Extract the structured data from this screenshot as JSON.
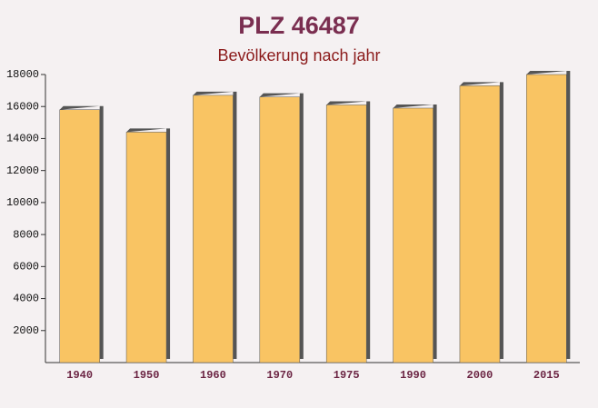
{
  "chart_data": {
    "type": "bar",
    "title": "PLZ 46487",
    "subtitle": "Bevölkerung nach jahr",
    "categories": [
      "1940",
      "1950",
      "1960",
      "1970",
      "1975",
      "1990",
      "2000",
      "2015"
    ],
    "values": [
      15800,
      14400,
      16700,
      16600,
      16100,
      15900,
      17300,
      18000
    ],
    "color": "#f9c463",
    "ylim": [
      0,
      18000
    ],
    "yticks": [
      2000,
      4000,
      6000,
      8000,
      10000,
      12000,
      14000,
      16000,
      18000
    ]
  }
}
